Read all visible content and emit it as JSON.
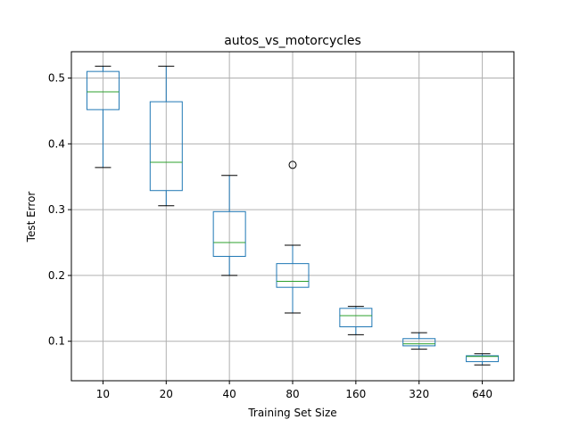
{
  "chart_data": {
    "type": "box",
    "title": "autos_vs_motorcycles",
    "xlabel": "Training Set Size",
    "ylabel": "Test Error",
    "ylim": [
      0.04,
      0.54
    ],
    "yticks": [
      0.1,
      0.2,
      0.3,
      0.4,
      0.5
    ],
    "ytick_labels": [
      "0.1",
      "0.2",
      "0.3",
      "0.4",
      "0.5"
    ],
    "grid": true,
    "colors": {
      "box": "#1f77b4",
      "median": "#2ca02c",
      "whisker_cap": "#000000",
      "grid": "#b0b0b0",
      "flier": "#000000"
    },
    "categories": [
      "10",
      "20",
      "40",
      "80",
      "160",
      "320",
      "640"
    ],
    "boxes": [
      {
        "category": "10",
        "whislo": 0.364,
        "q1": 0.452,
        "med": 0.479,
        "q3": 0.51,
        "whishi": 0.518,
        "fliers": []
      },
      {
        "category": "20",
        "whislo": 0.306,
        "q1": 0.329,
        "med": 0.372,
        "q3": 0.464,
        "whishi": 0.518,
        "fliers": []
      },
      {
        "category": "40",
        "whislo": 0.2,
        "q1": 0.229,
        "med": 0.25,
        "q3": 0.297,
        "whishi": 0.352,
        "fliers": []
      },
      {
        "category": "80",
        "whislo": 0.143,
        "q1": 0.182,
        "med": 0.191,
        "q3": 0.218,
        "whishi": 0.246,
        "fliers": [
          0.368
        ]
      },
      {
        "category": "160",
        "whislo": 0.11,
        "q1": 0.122,
        "med": 0.139,
        "q3": 0.15,
        "whishi": 0.153,
        "fliers": []
      },
      {
        "category": "320",
        "whislo": 0.088,
        "q1": 0.093,
        "med": 0.096,
        "q3": 0.104,
        "whishi": 0.113,
        "fliers": []
      },
      {
        "category": "640",
        "whislo": 0.064,
        "q1": 0.069,
        "med": 0.077,
        "q3": 0.078,
        "whishi": 0.081,
        "fliers": []
      }
    ]
  }
}
